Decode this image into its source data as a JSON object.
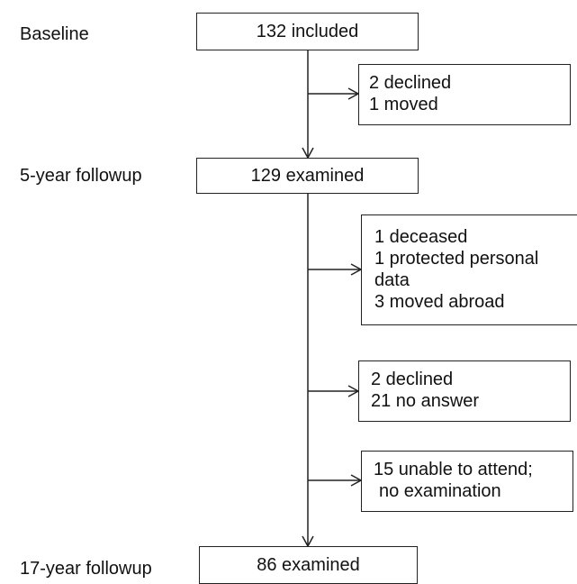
{
  "stages": {
    "baseline": "Baseline",
    "followup_5": "5-year followup",
    "followup_17": "17-year followup"
  },
  "main_boxes": {
    "baseline": "132 included",
    "followup_5": "129 examined",
    "followup_17": "86 examined"
  },
  "exclusions": {
    "first": [
      "2 declined",
      "1 moved"
    ],
    "second": [
      "1 deceased",
      "1 protected personal",
      "data",
      "3 moved abroad"
    ],
    "third": [
      "2 declined",
      "21 no answer"
    ],
    "fourth": [
      "15 unable to attend;",
      "no examination"
    ]
  }
}
